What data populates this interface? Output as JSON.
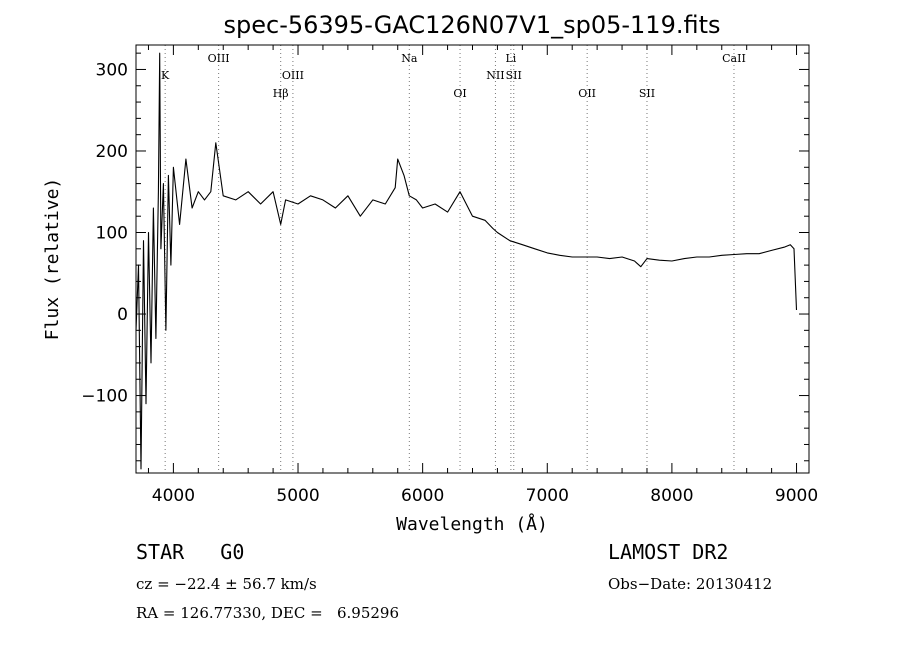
{
  "chart_data": {
    "type": "line",
    "title": "spec-56395-GAC126N07V1_sp05-119.fits",
    "xlabel": "Wavelength (Å)",
    "ylabel": "Flux (relative)",
    "xlim": [
      3700,
      9100
    ],
    "ylim": [
      -195,
      330
    ],
    "xticks": [
      4000,
      5000,
      6000,
      7000,
      8000,
      9000
    ],
    "yticks": [
      -100,
      0,
      100,
      200,
      300
    ],
    "ytick_labels": [
      "−100",
      "0",
      "100",
      "200",
      "300"
    ],
    "grid": false,
    "series": [
      {
        "x": [
          3700,
          3720,
          3740,
          3760,
          3780,
          3800,
          3820,
          3840,
          3860,
          3880,
          3890,
          3900,
          3920,
          3940,
          3960,
          3980,
          4000,
          4050,
          4100,
          4150,
          4200,
          4250,
          4300,
          4340,
          4400,
          4500,
          4600,
          4700,
          4800,
          4861,
          4900,
          5000,
          5100,
          5200,
          5300,
          5400,
          5500,
          5600,
          5700,
          5780,
          5800,
          5850,
          5893,
          5950,
          6000,
          6100,
          6200,
          6300,
          6400,
          6500,
          6563,
          6600,
          6700,
          6800,
          6900,
          7000,
          7100,
          7200,
          7300,
          7400,
          7500,
          7600,
          7700,
          7750,
          7800,
          7900,
          8000,
          8100,
          8200,
          8300,
          8400,
          8500,
          8600,
          8700,
          8800,
          8900,
          8950,
          8980,
          9000
        ],
        "y": [
          -20,
          60,
          -190,
          90,
          -110,
          100,
          -60,
          130,
          -30,
          150,
          320,
          80,
          160,
          -20,
          170,
          60,
          180,
          110,
          190,
          130,
          150,
          140,
          150,
          210,
          145,
          140,
          150,
          135,
          150,
          110,
          140,
          135,
          145,
          140,
          130,
          145,
          120,
          140,
          135,
          155,
          190,
          170,
          145,
          140,
          130,
          135,
          125,
          150,
          120,
          115,
          105,
          100,
          90,
          85,
          80,
          75,
          72,
          70,
          70,
          70,
          68,
          70,
          65,
          58,
          68,
          66,
          65,
          68,
          70,
          70,
          72,
          73,
          74,
          74,
          78,
          82,
          85,
          80,
          5
        ]
      }
    ],
    "lines": [
      {
        "name": "K",
        "x": 3934,
        "row": 1
      },
      {
        "name": "OIII",
        "x": 4363,
        "row": 0
      },
      {
        "name": "Hβ",
        "x": 4861,
        "row": 2
      },
      {
        "name": "OIII",
        "x": 4959,
        "row": 1
      },
      {
        "name": "Na",
        "x": 5893,
        "row": 0
      },
      {
        "name": "OI",
        "x": 6300,
        "row": 2
      },
      {
        "name": "NII",
        "x": 6584,
        "row": 1
      },
      {
        "name": "Li",
        "x": 6708,
        "row": 0
      },
      {
        "name": "SII",
        "x": 6731,
        "row": 1
      },
      {
        "name": "OII",
        "x": 7320,
        "row": 2
      },
      {
        "name": "SII",
        "x": 7800,
        "row": 2
      },
      {
        "name": "CaII",
        "x": 8498,
        "row": 0
      }
    ]
  },
  "info": {
    "class": "STAR   G0",
    "survey": "LAMOST DR2",
    "cz": "cz = −22.4 ± 56.7 km/s",
    "obs_date": "Obs−Date: 20130412",
    "coords": "RA = 126.77330, DEC =   6.95296"
  }
}
